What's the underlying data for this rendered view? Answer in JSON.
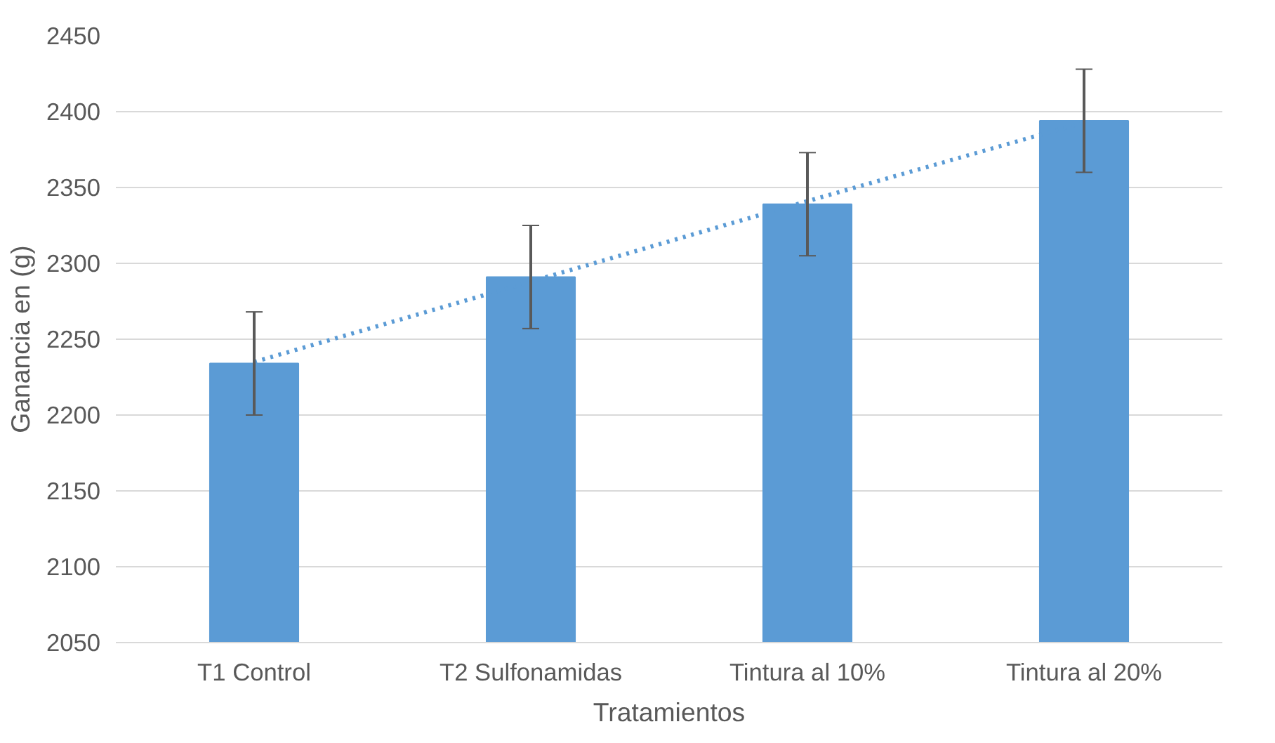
{
  "chart_data": {
    "type": "bar",
    "xlabel": "Tratamientos",
    "ylabel": "Ganancia en (g)",
    "categories": [
      "T1 Control",
      "T2 Sulfonamidas",
      "Tintura al 10%",
      "Tintura al 20%"
    ],
    "ylim": [
      2050,
      2450
    ],
    "yticks": [
      2050,
      2100,
      2150,
      2200,
      2250,
      2300,
      2350,
      2400,
      2450
    ],
    "grid": "y",
    "series": [
      {
        "color": "#5b9bd5",
        "values": [
          2234,
          2291,
          2339,
          2394
        ],
        "errors": [
          34,
          34,
          34,
          34
        ]
      },
      {
        "type": "line",
        "color": "#5b9bd5",
        "line_style": "dotted",
        "marker": "none",
        "values": [
          2235,
          2288,
          2341,
          2393
        ]
      }
    ]
  }
}
